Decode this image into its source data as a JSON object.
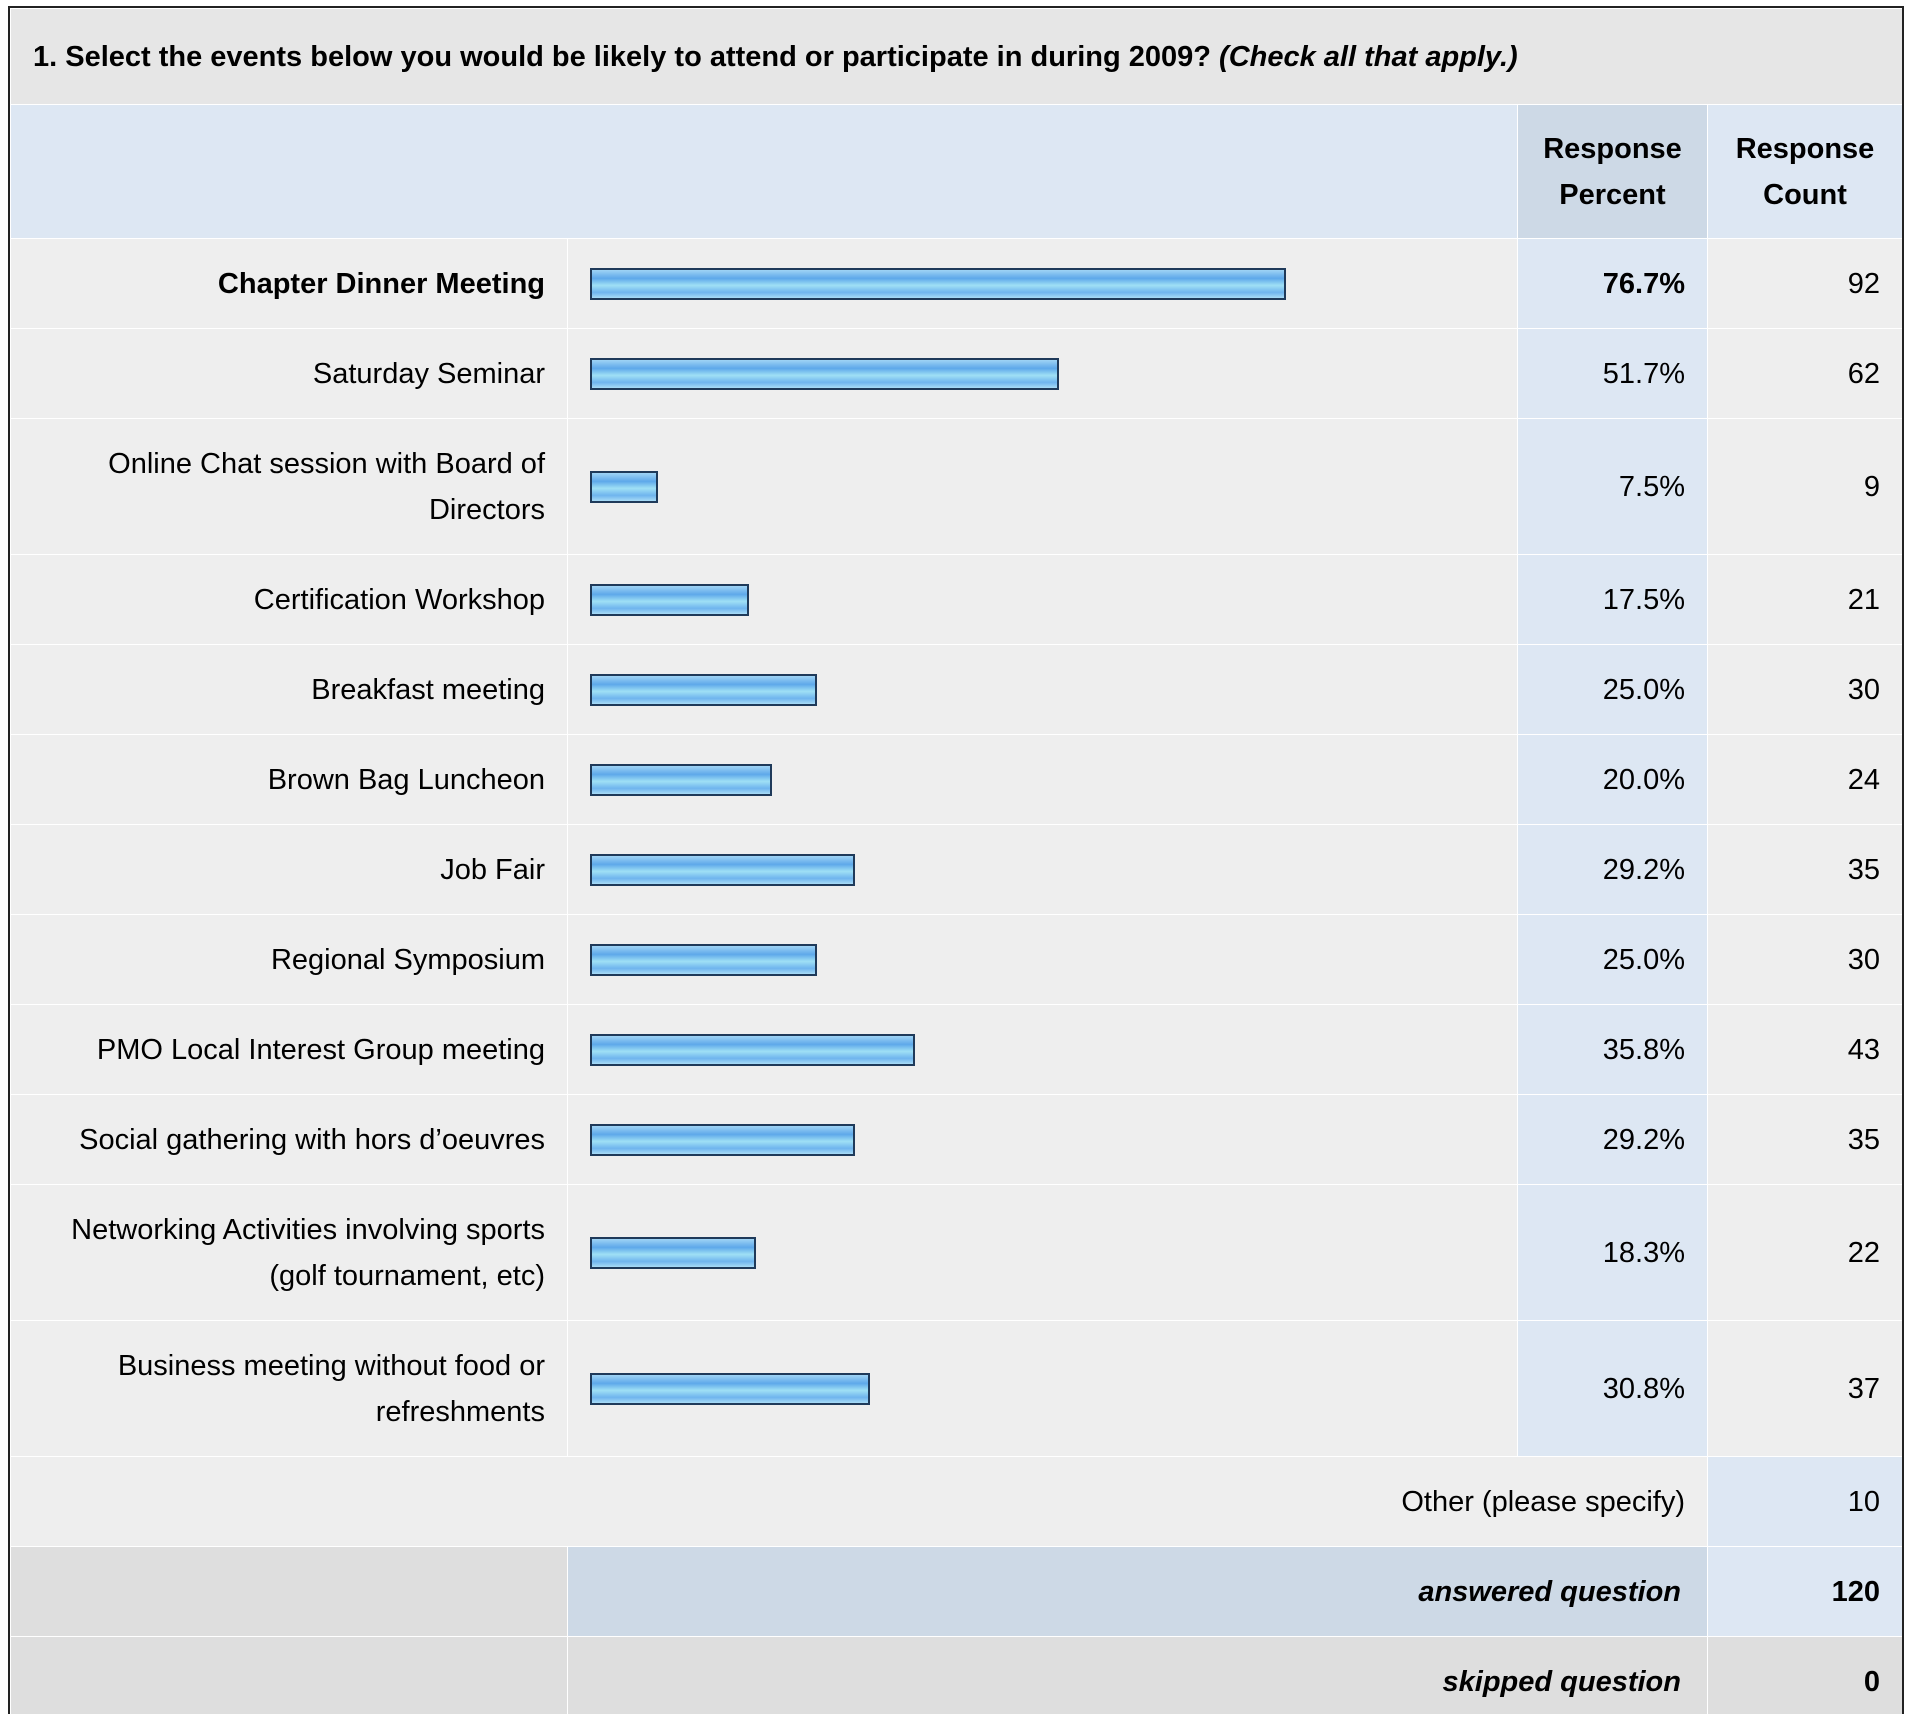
{
  "question": {
    "text": "1. Select the events below you would be likely to attend or participate in during 2009?",
    "note": "(Check all that apply.)"
  },
  "headers": {
    "percent": "Response Percent",
    "count": "Response Count"
  },
  "chart_data": {
    "type": "bar",
    "orientation": "horizontal",
    "categories": [
      "Chapter Dinner Meeting",
      "Saturday Seminar",
      "Online Chat session with Board of Directors",
      "Certification Workshop",
      "Breakfast meeting",
      "Brown Bag Luncheon",
      "Job Fair",
      "Regional Symposium",
      "PMO Local Interest Group meeting",
      "Social gathering with hors d’oeuvres",
      "Networking Activities involving sports (golf tournament, etc)",
      "Business meeting without food or refreshments"
    ],
    "percent_labels": [
      "76.7%",
      "51.7%",
      "7.5%",
      "17.5%",
      "25.0%",
      "20.0%",
      "29.2%",
      "25.0%",
      "35.8%",
      "29.2%",
      "18.3%",
      "30.8%"
    ],
    "values": [
      76.7,
      51.7,
      7.5,
      17.5,
      25.0,
      20.0,
      29.2,
      25.0,
      35.8,
      29.2,
      18.3,
      30.8
    ],
    "counts": [
      "92",
      "62",
      "9",
      "21",
      "30",
      "24",
      "35",
      "30",
      "43",
      "35",
      "22",
      "37"
    ],
    "xlim": [
      0,
      100
    ],
    "bar_color": "#5ea8ea",
    "bar_border_color": "#1f3a5a"
  },
  "other": {
    "label": "Other (please specify)",
    "count": "10"
  },
  "summary": {
    "answered_label": "answered question",
    "answered_count": "120",
    "skipped_label": "skipped question",
    "skipped_count": "0"
  }
}
